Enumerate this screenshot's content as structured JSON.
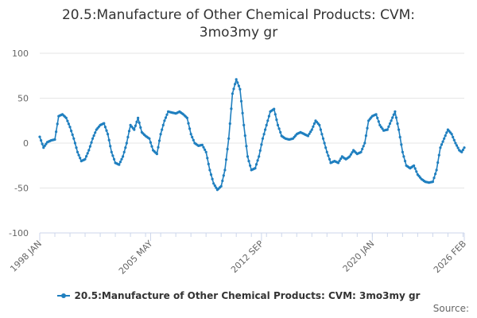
{
  "title_line1": "20.5:Manufacture of Other Chemical Products: CVM:",
  "title_line2": "3mo3my gr",
  "source_label": "Source:",
  "colors": {
    "series": "#1f7fbf",
    "grid": "#e6e6e6",
    "axis": "#ccd6eb",
    "text": "#666666"
  },
  "chart_data": {
    "type": "line",
    "title": "20.5:Manufacture of Other Chemical Products: CVM: 3mo3my gr",
    "xlabel": "",
    "ylabel": "",
    "ylim": [
      -100,
      100
    ],
    "yticks": [
      100,
      50,
      0,
      -50,
      -100
    ],
    "x_range": [
      1998.0,
      2026.083
    ],
    "xticks": [
      {
        "label": "1998 JAN",
        "x": 1998.0
      },
      {
        "label": "2005 MAY",
        "x": 2005.333
      },
      {
        "label": "2012 SEP",
        "x": 2012.667
      },
      {
        "label": "2020 JAN",
        "x": 2020.0
      },
      {
        "label": "2026 FEB",
        "x": 2026.083
      }
    ],
    "legend": "bottom",
    "series": [
      {
        "name": "20.5:Manufacture of Other Chemical Products: CVM: 3mo3my gr",
        "points": [
          [
            1998.0,
            7
          ],
          [
            1998.25,
            -5
          ],
          [
            1998.5,
            1
          ],
          [
            1998.75,
            3
          ],
          [
            1999.0,
            4
          ],
          [
            1999.25,
            30
          ],
          [
            1999.5,
            32
          ],
          [
            1999.75,
            28
          ],
          [
            2000.0,
            18
          ],
          [
            2000.25,
            5
          ],
          [
            2000.5,
            -10
          ],
          [
            2000.75,
            -20
          ],
          [
            2001.0,
            -18
          ],
          [
            2001.25,
            -8
          ],
          [
            2001.5,
            5
          ],
          [
            2001.75,
            15
          ],
          [
            2002.0,
            20
          ],
          [
            2002.25,
            22
          ],
          [
            2002.5,
            10
          ],
          [
            2002.75,
            -10
          ],
          [
            2003.0,
            -22
          ],
          [
            2003.25,
            -24
          ],
          [
            2003.5,
            -15
          ],
          [
            2003.75,
            0
          ],
          [
            2004.0,
            20
          ],
          [
            2004.25,
            15
          ],
          [
            2004.5,
            28
          ],
          [
            2004.75,
            12
          ],
          [
            2005.0,
            8
          ],
          [
            2005.25,
            5
          ],
          [
            2005.5,
            -8
          ],
          [
            2005.75,
            -12
          ],
          [
            2006.0,
            10
          ],
          [
            2006.25,
            25
          ],
          [
            2006.5,
            35
          ],
          [
            2006.75,
            34
          ],
          [
            2007.0,
            33
          ],
          [
            2007.25,
            35
          ],
          [
            2007.5,
            32
          ],
          [
            2007.75,
            28
          ],
          [
            2008.0,
            10
          ],
          [
            2008.25,
            0
          ],
          [
            2008.5,
            -3
          ],
          [
            2008.75,
            -2
          ],
          [
            2009.0,
            -10
          ],
          [
            2009.25,
            -30
          ],
          [
            2009.5,
            -45
          ],
          [
            2009.75,
            -52
          ],
          [
            2010.0,
            -48
          ],
          [
            2010.25,
            -30
          ],
          [
            2010.5,
            5
          ],
          [
            2010.75,
            55
          ],
          [
            2011.0,
            71
          ],
          [
            2011.25,
            60
          ],
          [
            2011.5,
            20
          ],
          [
            2011.75,
            -15
          ],
          [
            2012.0,
            -30
          ],
          [
            2012.25,
            -28
          ],
          [
            2012.5,
            -15
          ],
          [
            2012.75,
            5
          ],
          [
            2013.0,
            20
          ],
          [
            2013.25,
            35
          ],
          [
            2013.5,
            38
          ],
          [
            2013.75,
            20
          ],
          [
            2014.0,
            8
          ],
          [
            2014.25,
            5
          ],
          [
            2014.5,
            4
          ],
          [
            2014.75,
            5
          ],
          [
            2015.0,
            10
          ],
          [
            2015.25,
            12
          ],
          [
            2015.5,
            10
          ],
          [
            2015.75,
            8
          ],
          [
            2016.0,
            15
          ],
          [
            2016.25,
            25
          ],
          [
            2016.5,
            20
          ],
          [
            2016.75,
            5
          ],
          [
            2017.0,
            -10
          ],
          [
            2017.25,
            -22
          ],
          [
            2017.5,
            -20
          ],
          [
            2017.75,
            -22
          ],
          [
            2018.0,
            -15
          ],
          [
            2018.25,
            -18
          ],
          [
            2018.5,
            -15
          ],
          [
            2018.75,
            -8
          ],
          [
            2019.0,
            -12
          ],
          [
            2019.25,
            -10
          ],
          [
            2019.5,
            0
          ],
          [
            2019.75,
            25
          ],
          [
            2020.0,
            30
          ],
          [
            2020.25,
            32
          ],
          [
            2020.5,
            20
          ],
          [
            2020.75,
            14
          ],
          [
            2021.0,
            15
          ],
          [
            2021.25,
            25
          ],
          [
            2021.5,
            35
          ],
          [
            2021.75,
            15
          ],
          [
            2022.0,
            -10
          ],
          [
            2022.25,
            -25
          ],
          [
            2022.5,
            -28
          ],
          [
            2022.75,
            -25
          ],
          [
            2023.0,
            -35
          ],
          [
            2023.25,
            -40
          ],
          [
            2023.5,
            -43
          ],
          [
            2023.75,
            -44
          ],
          [
            2024.0,
            -43
          ],
          [
            2024.25,
            -30
          ],
          [
            2024.5,
            -5
          ],
          [
            2024.75,
            5
          ],
          [
            2025.0,
            15
          ],
          [
            2025.25,
            10
          ],
          [
            2025.5,
            0
          ],
          [
            2025.75,
            -8
          ],
          [
            2025.917,
            -10
          ],
          [
            2026.083,
            -5
          ]
        ]
      }
    ]
  }
}
